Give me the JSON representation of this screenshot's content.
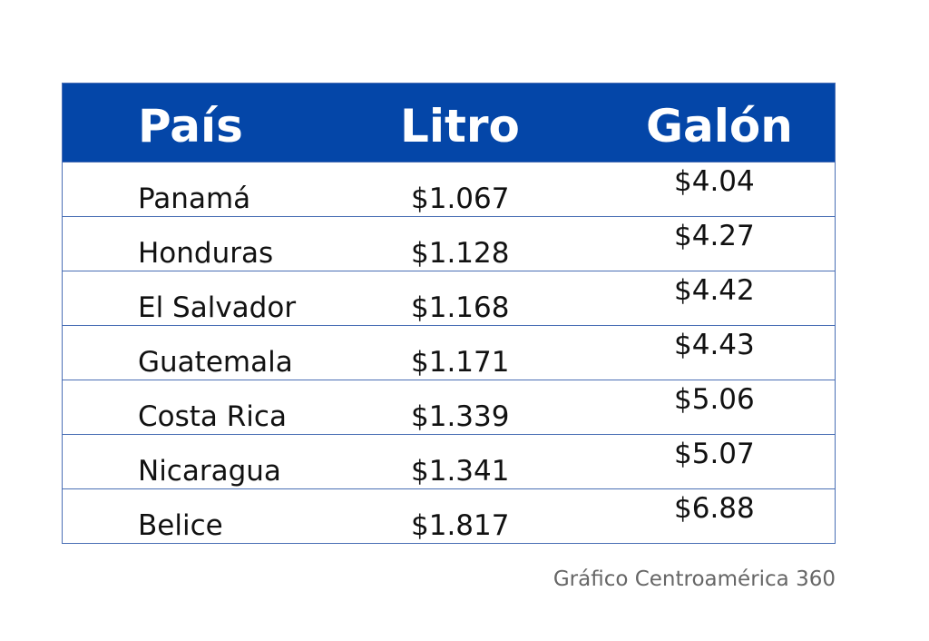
{
  "table": {
    "header": [
      "País",
      "Litro",
      "Galón"
    ],
    "rows": [
      [
        "Panamá",
        "$1.067",
        "$4.04"
      ],
      [
        "Honduras",
        "$1.128",
        "$4.27"
      ],
      [
        "El Salvador",
        "$1.168",
        "$4.42"
      ],
      [
        "Guatemala",
        "$1.171",
        "$4.43"
      ],
      [
        "Costa Rica",
        "$1.339",
        "$5.06"
      ],
      [
        "Nicaragua",
        "$1.341",
        "$5.07"
      ],
      [
        "Belice",
        "$1.817",
        "$6.88"
      ]
    ]
  },
  "footer": {
    "source": "Gráfico Centroamérica 360"
  }
}
